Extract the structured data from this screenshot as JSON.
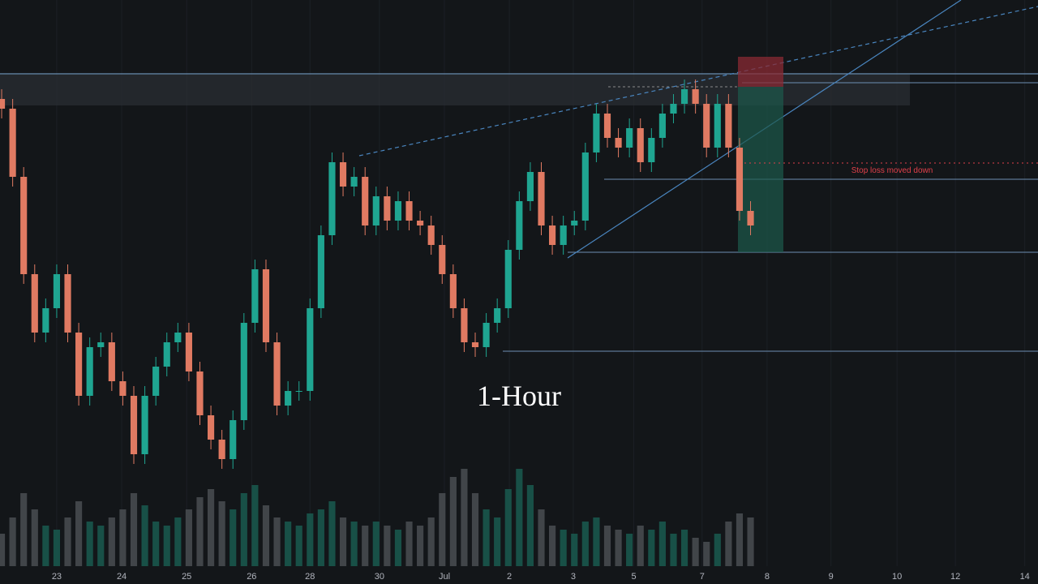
{
  "chart_data": {
    "type": "candlestick",
    "open": [
      83,
      81,
      67,
      47,
      35,
      40,
      47,
      35,
      22,
      32,
      33,
      25,
      22,
      10,
      22,
      28,
      33,
      35,
      27,
      18,
      13,
      9,
      17,
      37,
      48,
      33,
      20,
      23,
      23,
      40,
      55,
      70,
      65,
      67,
      57,
      63,
      58,
      62,
      58,
      57,
      53,
      47,
      40,
      33,
      32,
      37,
      40,
      52,
      62,
      68,
      57,
      53,
      57,
      58,
      72,
      80,
      75,
      73,
      77,
      70,
      75,
      80,
      82,
      85,
      82,
      73,
      82,
      73,
      60
    ],
    "high": [
      85,
      83,
      69,
      49,
      42,
      49,
      49,
      37,
      34,
      35,
      35,
      27,
      24,
      24,
      30,
      35,
      37,
      37,
      29,
      20,
      15,
      19,
      39,
      50,
      50,
      35,
      25,
      25,
      42,
      57,
      72,
      72,
      69,
      69,
      65,
      65,
      64,
      64,
      60,
      59,
      55,
      49,
      42,
      35,
      39,
      42,
      54,
      64,
      70,
      70,
      59,
      59,
      60,
      74,
      82,
      82,
      77,
      79,
      79,
      77,
      82,
      84,
      87,
      87,
      84,
      84,
      84,
      75,
      62
    ],
    "low": [
      79,
      65,
      45,
      33,
      33,
      38,
      33,
      20,
      20,
      30,
      23,
      20,
      8,
      8,
      20,
      26,
      31,
      25,
      16,
      11,
      7,
      7,
      15,
      35,
      31,
      18,
      18,
      21,
      21,
      38,
      53,
      63,
      63,
      55,
      55,
      56,
      56,
      56,
      55,
      51,
      45,
      38,
      31,
      30,
      30,
      35,
      38,
      50,
      60,
      55,
      51,
      51,
      55,
      56,
      70,
      73,
      71,
      71,
      68,
      68,
      73,
      78,
      80,
      80,
      71,
      71,
      71,
      58,
      55
    ],
    "close": [
      81,
      67,
      47,
      35,
      40,
      47,
      35,
      22,
      32,
      33,
      25,
      22,
      10,
      22,
      28,
      33,
      35,
      27,
      18,
      13,
      9,
      17,
      37,
      48,
      33,
      20,
      23,
      23,
      40,
      55,
      70,
      65,
      67,
      57,
      63,
      58,
      62,
      58,
      57,
      53,
      47,
      40,
      33,
      32,
      37,
      40,
      52,
      62,
      68,
      57,
      53,
      57,
      58,
      72,
      80,
      75,
      73,
      77,
      70,
      75,
      80,
      82,
      85,
      82,
      73,
      82,
      73,
      60,
      57
    ],
    "volume": [
      40,
      60,
      90,
      70,
      50,
      45,
      60,
      80,
      55,
      50,
      60,
      70,
      90,
      75,
      55,
      50,
      60,
      70,
      85,
      95,
      80,
      70,
      90,
      100,
      75,
      60,
      55,
      50,
      65,
      70,
      80,
      60,
      55,
      50,
      55,
      50,
      45,
      55,
      50,
      60,
      90,
      110,
      120,
      90,
      70,
      60,
      95,
      120,
      100,
      70,
      50,
      45,
      40,
      55,
      60,
      50,
      45,
      40,
      50,
      45,
      55,
      40,
      45,
      35,
      30,
      40,
      55,
      65,
      60
    ],
    "up_color": "#1fa591",
    "down_color": "#e07a62",
    "ylim": [
      0,
      100
    ],
    "xlim": [
      -0.15,
      94.1
    ],
    "xticks": [
      {
        "value": 5.0,
        "label": "23"
      },
      {
        "value": 10.9,
        "label": "24"
      },
      {
        "value": 16.8,
        "label": "25"
      },
      {
        "value": 22.7,
        "label": "26"
      },
      {
        "value": 28.0,
        "label": "28"
      },
      {
        "value": 34.3,
        "label": "30"
      },
      {
        "value": 40.2,
        "label": "Jul"
      },
      {
        "value": 46.1,
        "label": "2"
      },
      {
        "value": 51.9,
        "label": "3"
      },
      {
        "value": 57.4,
        "label": "5"
      },
      {
        "value": 63.6,
        "label": "7"
      },
      {
        "value": 69.5,
        "label": "8"
      },
      {
        "value": 75.3,
        "label": "9"
      },
      {
        "value": 81.3,
        "label": "10"
      },
      {
        "value": 86.6,
        "label": "12"
      },
      {
        "value": 92.9,
        "label": "14"
      }
    ],
    "timeframe_label": "1-Hour",
    "annotation": "Stop loss moved down"
  }
}
